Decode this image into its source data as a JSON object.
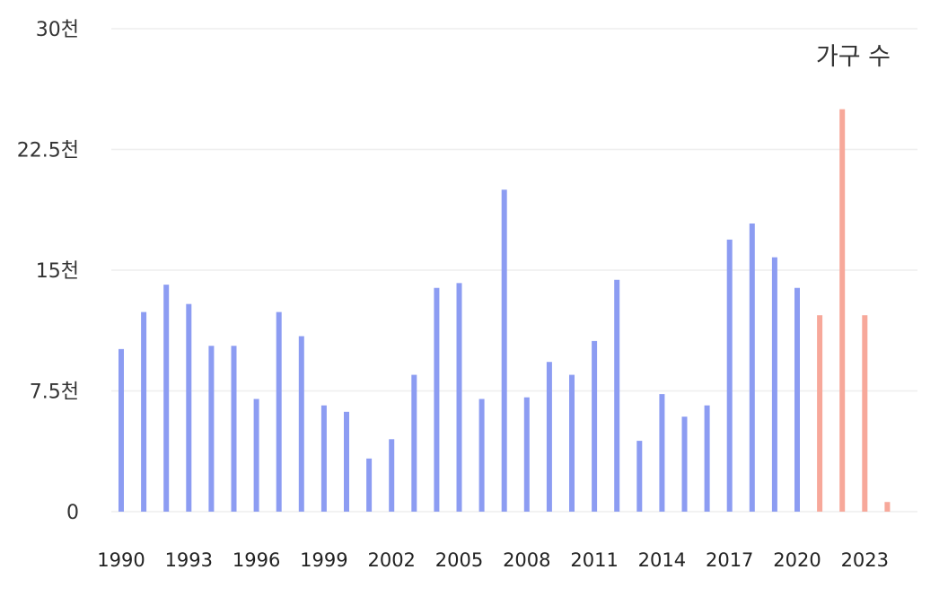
{
  "chart_data": {
    "type": "bar",
    "legend_label": "가구 수",
    "legend_position": "top-right",
    "grid": true,
    "ylim": [
      0,
      30000
    ],
    "y_ticks": [
      {
        "value": 0,
        "label": "0"
      },
      {
        "value": 7500,
        "label": "7.5천"
      },
      {
        "value": 15000,
        "label": "15천"
      },
      {
        "value": 22500,
        "label": "22.5천"
      },
      {
        "value": 30000,
        "label": "30천"
      }
    ],
    "x_tick_labels": [
      "1990",
      "1993",
      "1996",
      "1999",
      "2002",
      "2005",
      "2008",
      "2011",
      "2014",
      "2017",
      "2020",
      "2023"
    ],
    "colors": {
      "historical": "#8c9cf2",
      "projected": "#f7a89a",
      "grid": "#eeeeee"
    },
    "categories": [
      "1990",
      "1991",
      "1992",
      "1993",
      "1994",
      "1995",
      "1996",
      "1997",
      "1998",
      "1999",
      "2000",
      "2001",
      "2002",
      "2003",
      "2004",
      "2005",
      "2006",
      "2007",
      "2008",
      "2009",
      "2010",
      "2011",
      "2012",
      "2013",
      "2014",
      "2015",
      "2016",
      "2017",
      "2018",
      "2019",
      "2020",
      "2021",
      "2022",
      "2023",
      "2024"
    ],
    "values": [
      10100,
      12400,
      14100,
      12900,
      10300,
      10300,
      7000,
      12400,
      10900,
      6600,
      6200,
      3300,
      4500,
      8500,
      13900,
      14200,
      7000,
      20000,
      7100,
      9300,
      8500,
      10600,
      14400,
      4400,
      7300,
      5900,
      6600,
      16900,
      17900,
      15800,
      13900,
      12200,
      25000,
      12200,
      600
    ],
    "projected_from_index": 31
  }
}
